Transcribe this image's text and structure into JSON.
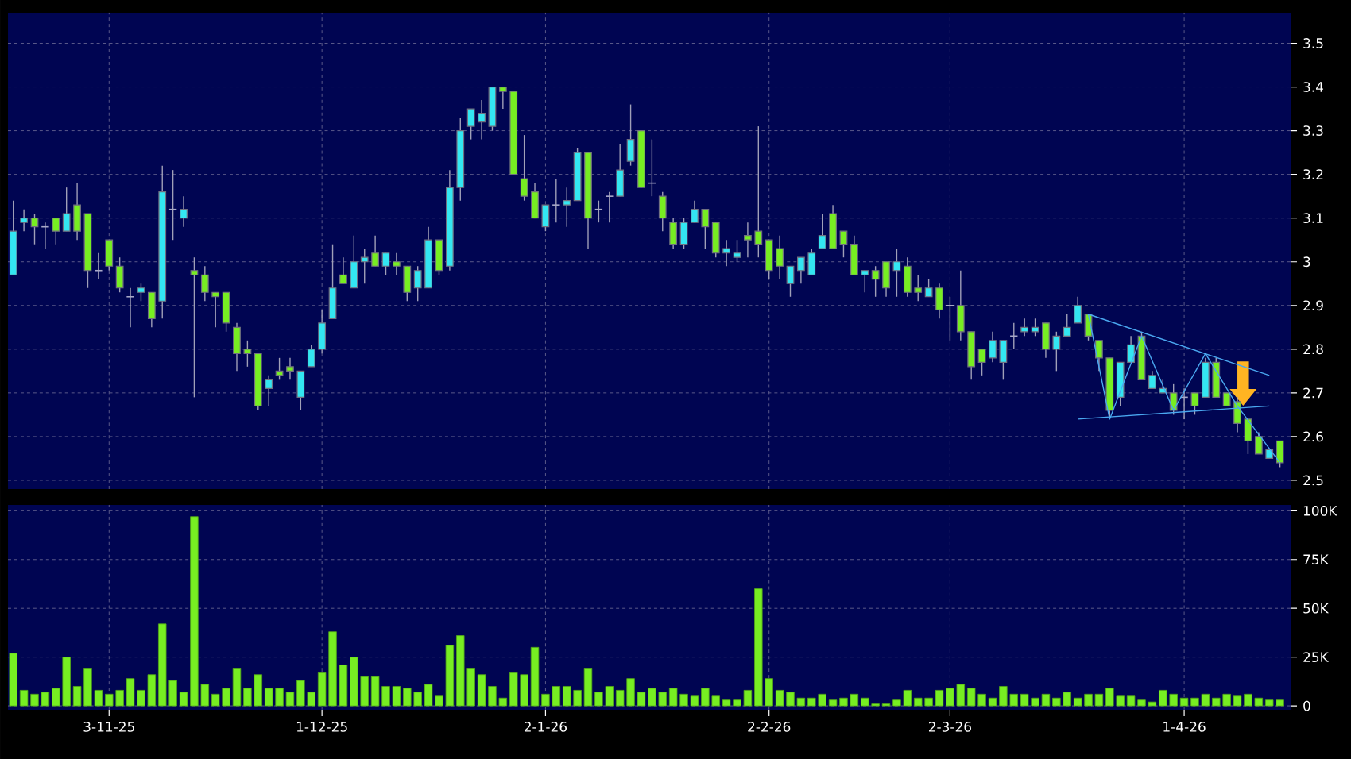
{
  "chart_data": [
    {
      "type": "candlestick",
      "grid": true,
      "tick_labels": "y",
      "ylim": [
        2.48,
        3.57
      ],
      "yticks": [
        2.5,
        2.6,
        2.7,
        2.8,
        2.9,
        3,
        3.1,
        3.2,
        3.3,
        3.4,
        3.5
      ],
      "categories": [
        null,
        null,
        null,
        null,
        null,
        null,
        null,
        null,
        null,
        null,
        null,
        null,
        null,
        null,
        null,
        null,
        null,
        null,
        null,
        null,
        null,
        null,
        null,
        null,
        null,
        null,
        null,
        null,
        null,
        null,
        null,
        null,
        null,
        null,
        null,
        null,
        null,
        null,
        null,
        null,
        null,
        null,
        null,
        null,
        null,
        null,
        null,
        null,
        null,
        null,
        null,
        null,
        null,
        null,
        null,
        null,
        null,
        null,
        null,
        null,
        null,
        null,
        null,
        null,
        null,
        null,
        null,
        null,
        null,
        null,
        null,
        null,
        null,
        null,
        null,
        null,
        null,
        null,
        null,
        null,
        null,
        null,
        null,
        null,
        null,
        null,
        null,
        null,
        null,
        null,
        null,
        null,
        null,
        null,
        null,
        null,
        null,
        null,
        null,
        null,
        null,
        null,
        null,
        null,
        null,
        null,
        null,
        null,
        null,
        null,
        null,
        null,
        null,
        null,
        null,
        null,
        null,
        null,
        null,
        null
      ],
      "ohlc": [
        [
          2.97,
          3.14,
          2.97,
          3.07
        ],
        [
          3.09,
          3.12,
          3.07,
          3.1
        ],
        [
          3.1,
          3.11,
          3.04,
          3.08
        ],
        [
          3.08,
          3.09,
          3.03,
          3.08
        ],
        [
          3.1,
          3.1,
          3.04,
          3.07
        ],
        [
          3.07,
          3.17,
          3.07,
          3.11
        ],
        [
          3.13,
          3.18,
          3.05,
          3.07
        ],
        [
          3.11,
          3.11,
          2.94,
          2.98
        ],
        [
          2.98,
          3.02,
          2.96,
          2.98
        ],
        [
          3.05,
          3.05,
          2.98,
          2.99
        ],
        [
          2.99,
          3.01,
          2.93,
          2.94
        ],
        [
          2.92,
          2.94,
          2.85,
          2.92
        ],
        [
          2.93,
          2.95,
          2.91,
          2.94
        ],
        [
          2.93,
          2.93,
          2.85,
          2.87
        ],
        [
          2.91,
          3.22,
          2.87,
          3.16
        ],
        [
          3.12,
          3.21,
          3.05,
          3.12
        ],
        [
          3.1,
          3.15,
          3.08,
          3.12
        ],
        [
          2.98,
          3.01,
          2.69,
          2.97
        ],
        [
          2.97,
          2.99,
          2.91,
          2.93
        ],
        [
          2.93,
          2.93,
          2.85,
          2.92
        ],
        [
          2.93,
          2.93,
          2.84,
          2.86
        ],
        [
          2.85,
          2.86,
          2.75,
          2.79
        ],
        [
          2.8,
          2.82,
          2.76,
          2.79
        ],
        [
          2.79,
          2.79,
          2.66,
          2.67
        ],
        [
          2.71,
          2.74,
          2.67,
          2.73
        ],
        [
          2.75,
          2.78,
          2.73,
          2.74
        ],
        [
          2.76,
          2.78,
          2.73,
          2.75
        ],
        [
          2.69,
          2.75,
          2.66,
          2.75
        ],
        [
          2.76,
          2.81,
          2.76,
          2.8
        ],
        [
          2.8,
          2.89,
          2.79,
          2.86
        ],
        [
          2.87,
          3.04,
          2.87,
          2.94
        ],
        [
          2.97,
          3.01,
          2.95,
          2.95
        ],
        [
          2.94,
          3.06,
          2.94,
          3.0
        ],
        [
          3.0,
          3.03,
          2.95,
          3.01
        ],
        [
          3.02,
          3.06,
          2.99,
          2.99
        ],
        [
          2.99,
          3.02,
          2.97,
          3.02
        ],
        [
          3.0,
          3.02,
          2.97,
          2.99
        ],
        [
          2.99,
          2.99,
          2.91,
          2.93
        ],
        [
          2.94,
          2.99,
          2.91,
          2.98
        ],
        [
          2.94,
          3.08,
          2.94,
          3.05
        ],
        [
          3.05,
          3.05,
          2.97,
          2.98
        ],
        [
          2.99,
          3.21,
          2.98,
          3.17
        ],
        [
          3.17,
          3.33,
          3.14,
          3.3
        ],
        [
          3.31,
          3.35,
          3.28,
          3.35
        ],
        [
          3.32,
          3.37,
          3.28,
          3.34
        ],
        [
          3.31,
          3.4,
          3.3,
          3.4
        ],
        [
          3.4,
          3.4,
          3.35,
          3.39
        ],
        [
          3.39,
          3.39,
          3.2,
          3.2
        ],
        [
          3.19,
          3.29,
          3.14,
          3.15
        ],
        [
          3.16,
          3.18,
          3.1,
          3.1
        ],
        [
          3.08,
          3.13,
          3.07,
          3.13
        ],
        [
          3.13,
          3.19,
          3.09,
          3.13
        ],
        [
          3.13,
          3.17,
          3.08,
          3.14
        ],
        [
          3.14,
          3.26,
          3.14,
          3.25
        ],
        [
          3.25,
          3.25,
          3.03,
          3.1
        ],
        [
          3.12,
          3.14,
          3.09,
          3.12
        ],
        [
          3.15,
          3.16,
          3.09,
          3.15
        ],
        [
          3.15,
          3.27,
          3.15,
          3.21
        ],
        [
          3.23,
          3.36,
          3.22,
          3.28
        ],
        [
          3.3,
          3.3,
          3.17,
          3.17
        ],
        [
          3.18,
          3.28,
          3.15,
          3.18
        ],
        [
          3.15,
          3.16,
          3.07,
          3.1
        ],
        [
          3.09,
          3.1,
          3.03,
          3.04
        ],
        [
          3.04,
          3.1,
          3.03,
          3.09
        ],
        [
          3.09,
          3.14,
          3.09,
          3.12
        ],
        [
          3.12,
          3.12,
          3.03,
          3.08
        ],
        [
          3.09,
          3.09,
          3.01,
          3.02
        ],
        [
          3.02,
          3.05,
          2.99,
          3.03
        ],
        [
          3.01,
          3.05,
          3.0,
          3.02
        ],
        [
          3.06,
          3.09,
          3.01,
          3.05
        ],
        [
          3.07,
          3.31,
          3.01,
          3.04
        ],
        [
          3.05,
          3.05,
          2.96,
          2.98
        ],
        [
          3.03,
          3.06,
          2.96,
          2.99
        ],
        [
          2.95,
          2.99,
          2.92,
          2.99
        ],
        [
          2.98,
          3.01,
          2.95,
          3.01
        ],
        [
          2.97,
          3.03,
          2.97,
          3.02
        ],
        [
          3.03,
          3.11,
          3.03,
          3.06
        ],
        [
          3.11,
          3.13,
          3.03,
          3.03
        ],
        [
          3.07,
          3.07,
          3.01,
          3.04
        ],
        [
          3.04,
          3.06,
          2.97,
          2.97
        ],
        [
          2.97,
          2.98,
          2.93,
          2.98
        ],
        [
          2.98,
          2.99,
          2.92,
          2.96
        ],
        [
          3.0,
          3.0,
          2.92,
          2.94
        ],
        [
          2.98,
          3.03,
          2.92,
          3.0
        ],
        [
          2.99,
          3.01,
          2.92,
          2.93
        ],
        [
          2.94,
          2.97,
          2.91,
          2.93
        ],
        [
          2.92,
          2.96,
          2.92,
          2.94
        ],
        [
          2.94,
          2.95,
          2.87,
          2.89
        ],
        [
          2.9,
          2.92,
          2.82,
          2.9
        ],
        [
          2.9,
          2.98,
          2.82,
          2.84
        ],
        [
          2.84,
          2.84,
          2.73,
          2.76
        ],
        [
          2.8,
          2.8,
          2.74,
          2.77
        ],
        [
          2.78,
          2.84,
          2.77,
          2.82
        ],
        [
          2.77,
          2.82,
          2.73,
          2.82
        ],
        [
          2.83,
          2.86,
          2.8,
          2.83
        ],
        [
          2.84,
          2.87,
          2.83,
          2.85
        ],
        [
          2.84,
          2.87,
          2.83,
          2.85
        ],
        [
          2.86,
          2.86,
          2.78,
          2.8
        ],
        [
          2.8,
          2.84,
          2.75,
          2.83
        ],
        [
          2.83,
          2.88,
          2.83,
          2.85
        ],
        [
          2.86,
          2.92,
          2.86,
          2.9
        ],
        [
          2.88,
          2.88,
          2.82,
          2.83
        ],
        [
          2.82,
          2.82,
          2.75,
          2.78
        ],
        [
          2.78,
          2.78,
          2.64,
          2.66
        ],
        [
          2.69,
          2.77,
          2.67,
          2.77
        ],
        [
          2.77,
          2.83,
          2.77,
          2.81
        ],
        [
          2.83,
          2.84,
          2.73,
          2.73
        ],
        [
          2.71,
          2.75,
          2.71,
          2.74
        ],
        [
          2.7,
          2.73,
          2.7,
          2.71
        ],
        [
          2.7,
          2.72,
          2.65,
          2.66
        ],
        [
          2.69,
          2.71,
          2.64,
          2.69
        ],
        [
          2.7,
          2.7,
          2.65,
          2.67
        ],
        [
          2.69,
          2.78,
          2.69,
          2.77
        ],
        [
          2.77,
          2.78,
          2.69,
          2.69
        ],
        [
          2.7,
          2.7,
          2.67,
          2.67
        ],
        [
          2.68,
          2.69,
          2.61,
          2.63
        ],
        [
          2.64,
          2.64,
          2.56,
          2.59
        ],
        [
          2.6,
          2.61,
          2.56,
          2.56
        ],
        [
          2.55,
          2.57,
          2.55,
          2.57
        ],
        [
          2.59,
          2.59,
          2.53,
          2.54
        ]
      ],
      "colors": [
        "#33e6f2",
        "#33e6f2",
        "#77ee22",
        "#a8a8c8",
        "#77ee22",
        "#33e6f2",
        "#77ee22",
        "#77ee22",
        "#a8a8c8",
        "#77ee22",
        "#77ee22",
        "#a8a8c8",
        "#33e6f2",
        "#77ee22",
        "#33e6f2",
        "#a8a8c8",
        "#33e6f2",
        "#77ee22",
        "#77ee22",
        "#77ee22",
        "#77ee22",
        "#77ee22",
        "#77ee22",
        "#77ee22",
        "#33e6f2",
        "#77ee22",
        "#77ee22",
        "#33e6f2",
        "#33e6f2",
        "#33e6f2",
        "#33e6f2",
        "#77ee22",
        "#33e6f2",
        "#33e6f2",
        "#77ee22",
        "#33e6f2",
        "#77ee22",
        "#77ee22",
        "#33e6f2",
        "#33e6f2",
        "#77ee22",
        "#33e6f2",
        "#33e6f2",
        "#33e6f2",
        "#33e6f2",
        "#33e6f2",
        "#77ee22",
        "#77ee22",
        "#77ee22",
        "#77ee22",
        "#33e6f2",
        "#a8a8c8",
        "#33e6f2",
        "#33e6f2",
        "#77ee22",
        "#a8a8c8",
        "#a8a8c8",
        "#33e6f2",
        "#33e6f2",
        "#77ee22",
        "#a8a8c8",
        "#77ee22",
        "#77ee22",
        "#33e6f2",
        "#33e6f2",
        "#77ee22",
        "#77ee22",
        "#33e6f2",
        "#33e6f2",
        "#77ee22",
        "#77ee22",
        "#77ee22",
        "#77ee22",
        "#33e6f2",
        "#33e6f2",
        "#33e6f2",
        "#33e6f2",
        "#77ee22",
        "#77ee22",
        "#77ee22",
        "#33e6f2",
        "#77ee22",
        "#77ee22",
        "#33e6f2",
        "#77ee22",
        "#77ee22",
        "#33e6f2",
        "#77ee22",
        "#a8a8c8",
        "#77ee22",
        "#77ee22",
        "#77ee22",
        "#33e6f2",
        "#33e6f2",
        "#a8a8c8",
        "#33e6f2",
        "#33e6f2",
        "#77ee22",
        "#33e6f2",
        "#33e6f2",
        "#33e6f2",
        "#77ee22",
        "#77ee22",
        "#77ee22",
        "#33e6f2",
        "#33e6f2",
        "#77ee22",
        "#33e6f2",
        "#33e6f2",
        "#77ee22",
        "#a8a8c8",
        "#77ee22",
        "#33e6f2",
        "#77ee22",
        "#77ee22",
        "#77ee22",
        "#77ee22",
        "#77ee22",
        "#33e6f2",
        "#77ee22"
      ],
      "series": [
        {
          "type": "line",
          "color": "#4aa8f0",
          "values": [
            null,
            null,
            null,
            null,
            null,
            null,
            null,
            null,
            null,
            null,
            null,
            null,
            null,
            null,
            null,
            null,
            null,
            null,
            null,
            null,
            null,
            null,
            null,
            null,
            null,
            null,
            null,
            null,
            null,
            null,
            null,
            null,
            null,
            null,
            null,
            null,
            null,
            null,
            null,
            null,
            null,
            null,
            null,
            null,
            null,
            null,
            null,
            null,
            null,
            null,
            null,
            null,
            null,
            null,
            null,
            null,
            null,
            null,
            null,
            null,
            null,
            null,
            null,
            null,
            null,
            null,
            null,
            null,
            null,
            null,
            null,
            null,
            null,
            null,
            null,
            null,
            null,
            null,
            null,
            null,
            null,
            null,
            null,
            null,
            null,
            null,
            null,
            null,
            null,
            null,
            null,
            null,
            null,
            null,
            null,
            null,
            null,
            null,
            null,
            null,
            null,
            2.88,
            null,
            null,
            null,
            null,
            null,
            null,
            null,
            null,
            null,
            null,
            null,
            null,
            null,
            null,
            null,
            null,
            2.74,
            null
          ]
        },
        {
          "type": "line",
          "color": "#4aa8f0",
          "values": [
            null,
            null,
            null,
            null,
            null,
            null,
            null,
            null,
            null,
            null,
            null,
            null,
            null,
            null,
            null,
            null,
            null,
            null,
            null,
            null,
            null,
            null,
            null,
            null,
            null,
            null,
            null,
            null,
            null,
            null,
            null,
            null,
            null,
            null,
            null,
            null,
            null,
            null,
            null,
            null,
            null,
            null,
            null,
            null,
            null,
            null,
            null,
            null,
            null,
            null,
            null,
            null,
            null,
            null,
            null,
            null,
            null,
            null,
            null,
            null,
            null,
            null,
            null,
            null,
            null,
            null,
            null,
            null,
            null,
            null,
            null,
            null,
            null,
            null,
            null,
            null,
            null,
            null,
            null,
            null,
            null,
            null,
            null,
            null,
            null,
            null,
            null,
            null,
            null,
            null,
            null,
            null,
            null,
            null,
            null,
            null,
            null,
            null,
            null,
            null,
            2.64,
            null,
            null,
            null,
            null,
            null,
            null,
            null,
            null,
            null,
            null,
            null,
            null,
            null,
            null,
            null,
            null,
            null,
            2.67,
            null
          ]
        },
        {
          "type": "line",
          "color": "#4aa8f0",
          "values": [
            null,
            null,
            null,
            null,
            null,
            null,
            null,
            null,
            null,
            null,
            null,
            null,
            null,
            null,
            null,
            null,
            null,
            null,
            null,
            null,
            null,
            null,
            null,
            null,
            null,
            null,
            null,
            null,
            null,
            null,
            null,
            null,
            null,
            null,
            null,
            null,
            null,
            null,
            null,
            null,
            null,
            null,
            null,
            null,
            null,
            null,
            null,
            null,
            null,
            null,
            null,
            null,
            null,
            null,
            null,
            null,
            null,
            null,
            null,
            null,
            null,
            null,
            null,
            null,
            null,
            null,
            null,
            null,
            null,
            null,
            null,
            null,
            null,
            null,
            null,
            null,
            null,
            null,
            null,
            null,
            null,
            null,
            null,
            null,
            null,
            null,
            null,
            null,
            null,
            null,
            null,
            null,
            null,
            null,
            null,
            null,
            null,
            null,
            null,
            null,
            null,
            2.88,
            null,
            2.64,
            null,
            null,
            2.83,
            null,
            null,
            2.66,
            null,
            null,
            2.79,
            null,
            null,
            2.67,
            null,
            null,
            null,
            2.54
          ]
        }
      ]
    },
    {
      "type": "bar",
      "grid": true,
      "color": "#77ee22",
      "ylim": [
        -2000,
        103000
      ],
      "yticks": [
        0,
        {
          "value": 25000,
          "label": "25K"
        },
        {
          "value": 50000,
          "label": "50K"
        },
        {
          "value": 75000,
          "label": "75K"
        },
        {
          "value": 100000,
          "label": "100K"
        }
      ],
      "categories": [
        null,
        null,
        null,
        null,
        null,
        null,
        null,
        null,
        null,
        "3-11-25",
        null,
        null,
        null,
        null,
        null,
        null,
        null,
        null,
        null,
        null,
        null,
        null,
        null,
        null,
        null,
        null,
        null,
        null,
        null,
        "1-12-25",
        null,
        null,
        null,
        null,
        null,
        null,
        null,
        null,
        null,
        null,
        null,
        null,
        null,
        null,
        null,
        null,
        null,
        null,
        null,
        null,
        "2-1-26",
        null,
        null,
        null,
        null,
        null,
        null,
        null,
        null,
        null,
        null,
        null,
        null,
        null,
        null,
        null,
        null,
        null,
        null,
        null,
        null,
        "2-2-26",
        null,
        null,
        null,
        null,
        null,
        null,
        null,
        null,
        null,
        null,
        null,
        null,
        null,
        null,
        null,
        null,
        "2-3-26",
        null,
        null,
        null,
        null,
        null,
        null,
        null,
        null,
        null,
        null,
        null,
        null,
        null,
        null,
        null,
        null,
        null,
        null,
        null,
        null,
        null,
        "1-4-26",
        null,
        null,
        null,
        null,
        null,
        null,
        null,
        null,
        null
      ],
      "values": [
        27000,
        8000,
        6000,
        7000,
        9000,
        25000,
        10000,
        19000,
        8000,
        6000,
        8000,
        14000,
        8000,
        16000,
        42000,
        13000,
        7000,
        97000,
        11000,
        6000,
        9000,
        19000,
        9000,
        16000,
        9000,
        9000,
        7000,
        13000,
        7000,
        17000,
        38000,
        21000,
        25000,
        15000,
        15000,
        10000,
        10000,
        9000,
        7000,
        11000,
        5000,
        31000,
        36000,
        19000,
        16000,
        10000,
        4000,
        17000,
        16000,
        30000,
        6000,
        10000,
        10000,
        8000,
        19000,
        7000,
        10000,
        8000,
        14000,
        7000,
        9000,
        7000,
        9000,
        6000,
        5000,
        9000,
        5000,
        3000,
        3000,
        8000,
        60000,
        14000,
        8000,
        7000,
        4000,
        4000,
        6000,
        3000,
        4000,
        6000,
        4000,
        1000,
        1000,
        3000,
        8000,
        4000,
        4000,
        8000,
        9000,
        11000,
        9000,
        6000,
        4000,
        10000,
        6000,
        6000,
        4000,
        6000,
        4000,
        7000,
        4000,
        6000,
        6000,
        9000,
        5000,
        5000,
        3000,
        2000,
        8000,
        6000,
        4000,
        4000,
        6000,
        4000,
        6000,
        5000,
        6000,
        4000,
        3000,
        3000
      ]
    }
  ]
}
